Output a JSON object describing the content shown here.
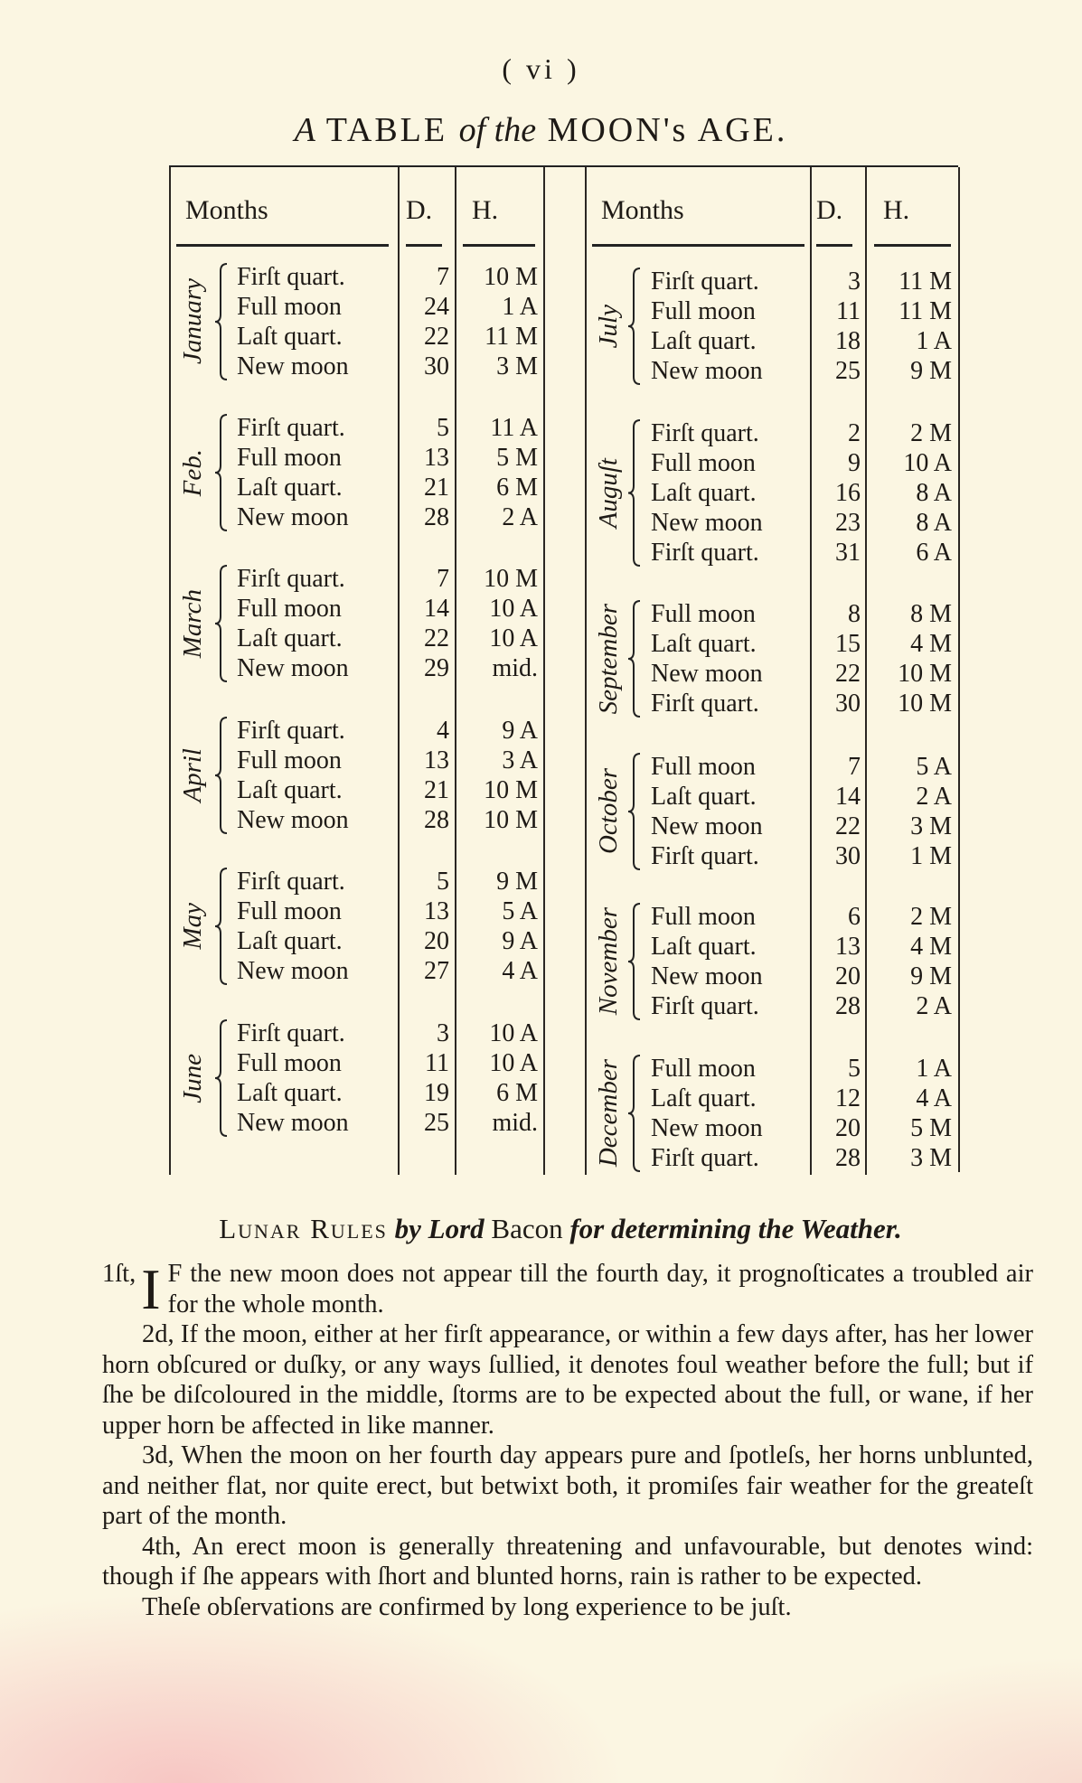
{
  "page_number": "( vi )",
  "title": {
    "pre": "A TABLE",
    "of": "of the",
    "post": "MOON's AGE."
  },
  "table": {
    "headers": {
      "months": "Months",
      "day": "D.",
      "hour": "H."
    },
    "left": [
      {
        "month": "January",
        "events": [
          {
            "phase": "Firſt quart.",
            "day": "7",
            "hour": "10 M"
          },
          {
            "phase": "Full moon",
            "day": "24",
            "hour": "1 A"
          },
          {
            "phase": "Laſt quart.",
            "day": "22",
            "hour": "11 M"
          },
          {
            "phase": "New moon",
            "day": "30",
            "hour": "3 M"
          }
        ]
      },
      {
        "month": "Feb.",
        "events": [
          {
            "phase": "Firſt quart.",
            "day": "5",
            "hour": "11 A"
          },
          {
            "phase": "Full moon",
            "day": "13",
            "hour": "5 M"
          },
          {
            "phase": "Laſt quart.",
            "day": "21",
            "hour": "6 M"
          },
          {
            "phase": "New moon",
            "day": "28",
            "hour": "2 A"
          }
        ]
      },
      {
        "month": "March",
        "events": [
          {
            "phase": "Firſt quart.",
            "day": "7",
            "hour": "10 M"
          },
          {
            "phase": "Full moon",
            "day": "14",
            "hour": "10 A"
          },
          {
            "phase": "Laſt quart.",
            "day": "22",
            "hour": "10 A"
          },
          {
            "phase": "New moon",
            "day": "29",
            "hour": "mid."
          }
        ]
      },
      {
        "month": "April",
        "events": [
          {
            "phase": "Firſt quart.",
            "day": "4",
            "hour": "9 A"
          },
          {
            "phase": "Full moon",
            "day": "13",
            "hour": "3 A"
          },
          {
            "phase": "Laſt quart.",
            "day": "21",
            "hour": "10 M"
          },
          {
            "phase": "New moon",
            "day": "28",
            "hour": "10 M"
          }
        ]
      },
      {
        "month": "May",
        "events": [
          {
            "phase": "Firſt quart.",
            "day": "5",
            "hour": "9 M"
          },
          {
            "phase": "Full moon",
            "day": "13",
            "hour": "5 A"
          },
          {
            "phase": "Laſt quart.",
            "day": "20",
            "hour": "9 A"
          },
          {
            "phase": "New moon",
            "day": "27",
            "hour": "4 A"
          }
        ]
      },
      {
        "month": "June",
        "events": [
          {
            "phase": "Firſt quart.",
            "day": "3",
            "hour": "10 A"
          },
          {
            "phase": "Full moon",
            "day": "11",
            "hour": "10 A"
          },
          {
            "phase": "Laſt quart.",
            "day": "19",
            "hour": "6 M"
          },
          {
            "phase": "New moon",
            "day": "25",
            "hour": "mid."
          }
        ]
      }
    ],
    "right": [
      {
        "month": "July",
        "events": [
          {
            "phase": "Firſt quart.",
            "day": "3",
            "hour": "11 M"
          },
          {
            "phase": "Full moon",
            "day": "11",
            "hour": "11 M"
          },
          {
            "phase": "Laſt quart.",
            "day": "18",
            "hour": "1 A"
          },
          {
            "phase": "New moon",
            "day": "25",
            "hour": "9 M"
          }
        ]
      },
      {
        "month": "Auguſt",
        "events": [
          {
            "phase": "Firſt quart.",
            "day": "2",
            "hour": "2 M"
          },
          {
            "phase": "Full moon",
            "day": "9",
            "hour": "10 A"
          },
          {
            "phase": "Laſt quart.",
            "day": "16",
            "hour": "8 A"
          },
          {
            "phase": "New moon",
            "day": "23",
            "hour": "8 A"
          },
          {
            "phase": "Firſt quart.",
            "day": "31",
            "hour": "6 A"
          }
        ]
      },
      {
        "month": "September",
        "events": [
          {
            "phase": "Full moon",
            "day": "8",
            "hour": "8 M"
          },
          {
            "phase": "Laſt quart.",
            "day": "15",
            "hour": "4 M"
          },
          {
            "phase": "New moon",
            "day": "22",
            "hour": "10 M"
          },
          {
            "phase": "Firſt quart.",
            "day": "30",
            "hour": "10 M"
          }
        ]
      },
      {
        "month": "October",
        "events": [
          {
            "phase": "Full moon",
            "day": "7",
            "hour": "5 A"
          },
          {
            "phase": "Laſt quart.",
            "day": "14",
            "hour": "2 A"
          },
          {
            "phase": "New moon",
            "day": "22",
            "hour": "3 M"
          },
          {
            "phase": "Firſt quart.",
            "day": "30",
            "hour": "1 M"
          }
        ]
      },
      {
        "month": "November",
        "events": [
          {
            "phase": "Full moon",
            "day": "6",
            "hour": "2 M"
          },
          {
            "phase": "Laſt quart.",
            "day": "13",
            "hour": "4 M"
          },
          {
            "phase": "New moon",
            "day": "20",
            "hour": "9 M"
          },
          {
            "phase": "Firſt quart.",
            "day": "28",
            "hour": "2 A"
          }
        ]
      },
      {
        "month": "December",
        "events": [
          {
            "phase": "Full moon",
            "day": "5",
            "hour": "1 A"
          },
          {
            "phase": "Laſt quart.",
            "day": "12",
            "hour": "4 A"
          },
          {
            "phase": "New moon",
            "day": "20",
            "hour": "5 M"
          },
          {
            "phase": "Firſt quart.",
            "day": "28",
            "hour": "3 M"
          }
        ]
      }
    ]
  },
  "rules": {
    "heading": {
      "lunar_rules": "Lunar Rules",
      "by": "by Lord",
      "bacon": "Bacon",
      "for": "for determining the Weather."
    },
    "first_label": "1ſt,",
    "first_dropcap": "I",
    "first_text": "F the new moon does not appear till the fourth day, it prognoſticates a troubled air for the whole month.",
    "paragraphs": [
      "2d, If the moon, either at her firſt appearance, or within a few days after, has her lower horn obſcured or duſky, or any ways ſullied, it denotes foul weather before the full; but if ſhe be diſcoloured in the middle, ſtorms are to be expected about the full, or wane, if her upper horn be affected in like manner.",
      "3d, When the moon on her fourth day appears pure and ſpotleſs, her horns unblunted, and neither flat, nor quite erect, but betwixt both, it promiſes fair weather for the greateſt part of the month.",
      "4th, An erect moon is generally threatening and unfavourable, but denotes wind: though if ſhe appears with ſhort and blunted horns, rain is rather to be expected.",
      "Theſe obſervations are confirmed by long experience to be juſt."
    ]
  }
}
